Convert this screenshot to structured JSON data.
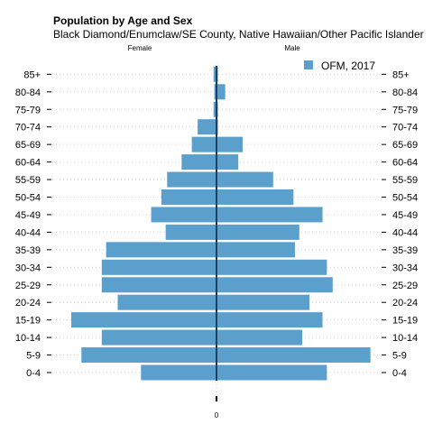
{
  "chart_data": {
    "type": "bar",
    "orientation": "horizontal",
    "layout": "population-pyramid",
    "title": "Population by Age and Sex",
    "subtitle": "Black Diamond/Enumclaw/SE County, Native Hawaiian/Other Pacific Islander",
    "left_label": "Female",
    "right_label": "Male",
    "x_tick_label": "0",
    "legend": {
      "label": "OFM, 2017",
      "position": "top-right"
    },
    "color": "#5b9fcc",
    "grid": true,
    "xlim": [
      -10,
      10.6
    ],
    "categories": [
      "0-4",
      "5-9",
      "10-14",
      "15-19",
      "20-24",
      "25-29",
      "30-34",
      "35-39",
      "40-44",
      "45-49",
      "50-54",
      "55-59",
      "60-64",
      "65-69",
      "70-74",
      "75-79",
      "80-84",
      "85+"
    ],
    "series": [
      {
        "name": "Female",
        "values": [
          5.2,
          9.3,
          7.9,
          10,
          6.8,
          7.9,
          7.9,
          7.6,
          3.5,
          4.5,
          3.8,
          3.4,
          2.4,
          1.7,
          1.3,
          0.2,
          0.15,
          0.2
        ]
      },
      {
        "name": "Male",
        "values": [
          7.6,
          10.6,
          5.9,
          7.3,
          6.4,
          8.0,
          7.6,
          5.4,
          5.7,
          7.3,
          5.3,
          3.9,
          1.5,
          1.8,
          0.1,
          0.1,
          0.6,
          0.1
        ]
      }
    ]
  }
}
